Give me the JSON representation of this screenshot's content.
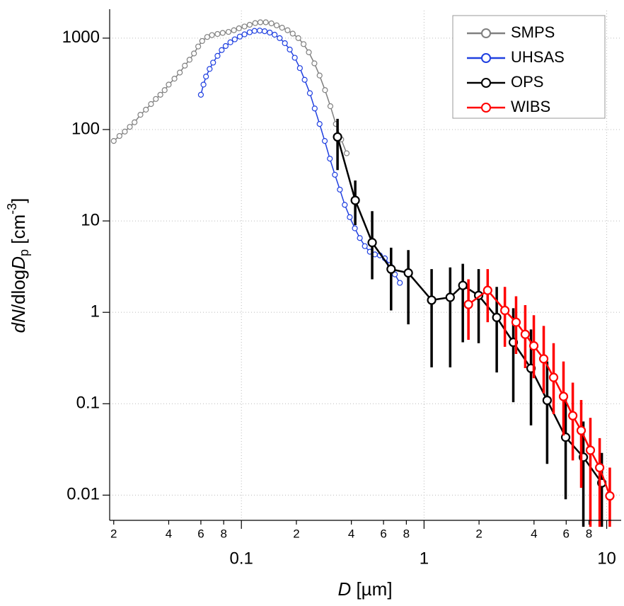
{
  "chart_data": {
    "type": "line",
    "xlabel": [
      "D",
      " [µm]"
    ],
    "ylabel": [
      "d",
      "N",
      "/dlog",
      "D",
      "p",
      " [cm",
      "-3",
      "]"
    ],
    "xscale": "log",
    "yscale": "log",
    "grid": true,
    "legend": "upper right",
    "xlim": [
      0.019,
      12
    ],
    "ylim": [
      0.0053,
      2000
    ],
    "xticks": [
      {
        "value": 0.02,
        "label": "2"
      },
      {
        "value": 0.04,
        "label": "4"
      },
      {
        "value": 0.06,
        "label": "6"
      },
      {
        "value": 0.08,
        "label": "8"
      },
      0.1,
      {
        "value": 0.2,
        "label": "2"
      },
      {
        "value": 0.4,
        "label": "4"
      },
      {
        "value": 0.6,
        "label": "6"
      },
      {
        "value": 0.8,
        "label": "8"
      },
      1,
      {
        "value": 2,
        "label": "2"
      },
      {
        "value": 4,
        "label": "4"
      },
      {
        "value": 6,
        "label": "6"
      },
      {
        "value": 8,
        "label": "8"
      },
      10
    ],
    "yticks": [
      0.01,
      0.1,
      1,
      10,
      100,
      1000
    ],
    "series": [
      {
        "name": "SMPS",
        "color": "#808080",
        "marker_size": 3.5,
        "x": [
          0.02,
          0.0215,
          0.023,
          0.0245,
          0.026,
          0.028,
          0.03,
          0.032,
          0.034,
          0.036,
          0.038,
          0.04,
          0.043,
          0.046,
          0.049,
          0.052,
          0.055,
          0.058,
          0.061,
          0.065,
          0.069,
          0.074,
          0.079,
          0.085,
          0.091,
          0.097,
          0.104,
          0.111,
          0.119,
          0.127,
          0.136,
          0.146,
          0.156,
          0.167,
          0.179,
          0.191,
          0.205,
          0.219,
          0.234,
          0.251,
          0.268,
          0.287,
          0.307,
          0.329,
          0.352,
          0.377
        ],
        "values": [
          75,
          85,
          95,
          107,
          120,
          145,
          165,
          190,
          216,
          240,
          270,
          310,
          360,
          420,
          500,
          580,
          680,
          810,
          930,
          1030,
          1080,
          1110,
          1140,
          1170,
          1220,
          1280,
          1340,
          1400,
          1460,
          1490,
          1490,
          1450,
          1380,
          1300,
          1220,
          1120,
          1000,
          860,
          700,
          530,
          390,
          270,
          180,
          115,
          78,
          55
        ]
      },
      {
        "name": "UHSAS",
        "color": "#2040e0",
        "marker_size": 3.5,
        "x": [
          0.06,
          0.062,
          0.064,
          0.067,
          0.07,
          0.074,
          0.078,
          0.082,
          0.087,
          0.092,
          0.098,
          0.104,
          0.111,
          0.118,
          0.126,
          0.134,
          0.143,
          0.152,
          0.162,
          0.173,
          0.184,
          0.196,
          0.209,
          0.222,
          0.237,
          0.252,
          0.268,
          0.286,
          0.305,
          0.325,
          0.346,
          0.368,
          0.392,
          0.418,
          0.445,
          0.474,
          0.505,
          0.538,
          0.573,
          0.61,
          0.65,
          0.692,
          0.737
        ],
        "values": [
          240,
          310,
          380,
          460,
          540,
          640,
          740,
          820,
          900,
          970,
          1040,
          1100,
          1160,
          1200,
          1210,
          1190,
          1150,
          1090,
          1000,
          880,
          750,
          610,
          470,
          350,
          250,
          170,
          115,
          75,
          48,
          32,
          22,
          15,
          11,
          8.3,
          6.5,
          5.3,
          4.6,
          4.3,
          4.2,
          3.9,
          3.3,
          2.6,
          2.1
        ]
      },
      {
        "name": "OPS",
        "color": "#000000",
        "marker_size": 5.5,
        "x": [
          0.336,
          0.42,
          0.52,
          0.66,
          0.82,
          1.1,
          1.39,
          1.63,
          1.99,
          2.5,
          3.08,
          3.85,
          4.72,
          5.96,
          7.45,
          9.4
        ],
        "values": [
          83,
          16.8,
          5.8,
          2.97,
          2.7,
          1.36,
          1.46,
          1.97,
          1.53,
          0.88,
          0.47,
          0.244,
          0.109,
          0.043,
          0.026,
          0.0136
        ],
        "lower": [
          36,
          9.0,
          2.3,
          1.05,
          0.74,
          0.25,
          0.25,
          0.47,
          0.46,
          0.22,
          0.104,
          0.058,
          0.022,
          0.009,
          0.0045,
          0.0045
        ],
        "upper": [
          131,
          27.7,
          12.8,
          5.1,
          4.8,
          2.97,
          3.1,
          3.4,
          2.97,
          1.9,
          1.11,
          0.65,
          0.29,
          0.12,
          0.064,
          0.029
        ]
      },
      {
        "name": "WIBS",
        "color": "#ff0000",
        "marker_size": 5.5,
        "x": [
          1.75,
          2.23,
          2.77,
          3.19,
          3.58,
          3.99,
          4.52,
          5.12,
          5.8,
          6.52,
          7.25,
          8.14,
          9.15,
          10.4
        ],
        "values": [
          1.22,
          1.74,
          1.05,
          0.78,
          0.575,
          0.43,
          0.31,
          0.194,
          0.12,
          0.074,
          0.051,
          0.031,
          0.02,
          0.0098
        ],
        "lower": [
          0.5,
          0.78,
          0.42,
          0.35,
          0.245,
          0.19,
          0.13,
          0.077,
          0.045,
          0.024,
          0.012,
          0.0045,
          0.0045,
          0.0045
        ],
        "upper": [
          2.3,
          2.97,
          1.9,
          1.5,
          1.2,
          0.93,
          0.71,
          0.46,
          0.29,
          0.17,
          0.11,
          0.07,
          0.042,
          0.02
        ]
      }
    ]
  }
}
